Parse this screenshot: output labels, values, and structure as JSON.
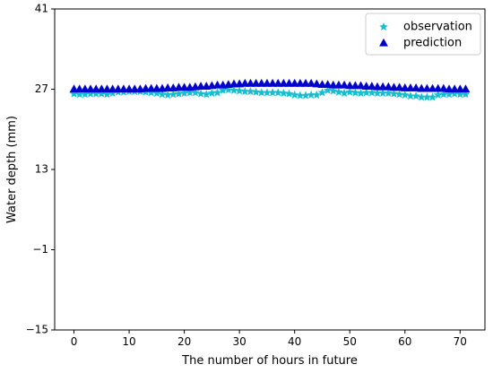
{
  "chart_data": {
    "type": "scatter",
    "title": "",
    "xlabel": "The number of hours in future",
    "ylabel": "Water depth (mm)",
    "xlim": [
      -3.5,
      74.5
    ],
    "ylim": [
      -15,
      41
    ],
    "xticks": [
      0,
      10,
      20,
      30,
      40,
      50,
      60,
      70
    ],
    "yticks": [
      -15,
      -1,
      13,
      27,
      41
    ],
    "ytick_labels": [
      "−15",
      "−1",
      "13",
      "27",
      "41"
    ],
    "grid": false,
    "legend_position": "top-right",
    "x": [
      0,
      1,
      2,
      3,
      4,
      5,
      6,
      7,
      8,
      9,
      10,
      11,
      12,
      13,
      14,
      15,
      16,
      17,
      18,
      19,
      20,
      21,
      22,
      23,
      24,
      25,
      26,
      27,
      28,
      29,
      30,
      31,
      32,
      33,
      34,
      35,
      36,
      37,
      38,
      39,
      40,
      41,
      42,
      43,
      44,
      45,
      46,
      47,
      48,
      49,
      50,
      51,
      52,
      53,
      54,
      55,
      56,
      57,
      58,
      59,
      60,
      61,
      62,
      63,
      64,
      65,
      66,
      67,
      68,
      69,
      70,
      71
    ],
    "series": [
      {
        "name": "observation",
        "marker": "star",
        "color": "#17becf",
        "values": [
          26.2,
          26.1,
          26.1,
          26.2,
          26.2,
          26.2,
          26.1,
          26.3,
          26.5,
          26.5,
          26.6,
          26.6,
          26.6,
          26.5,
          26.4,
          26.3,
          26.1,
          26.0,
          26.1,
          26.2,
          26.3,
          26.4,
          26.4,
          26.2,
          26.1,
          26.3,
          26.4,
          26.8,
          26.9,
          26.8,
          26.7,
          26.6,
          26.6,
          26.5,
          26.4,
          26.4,
          26.4,
          26.4,
          26.3,
          26.2,
          26.0,
          25.9,
          25.9,
          26.0,
          26.0,
          26.4,
          26.8,
          26.7,
          26.5,
          26.3,
          26.5,
          26.4,
          26.3,
          26.4,
          26.4,
          26.3,
          26.3,
          26.3,
          26.2,
          26.1,
          26.0,
          25.8,
          25.8,
          25.6,
          25.6,
          25.6,
          26.0,
          26.1,
          26.1,
          26.2,
          26.1,
          26.1
        ]
      },
      {
        "name": "prediction",
        "marker": "triangle",
        "color": "#0000cd",
        "values": [
          27.0,
          27.0,
          27.0,
          27.0,
          27.0,
          27.0,
          27.0,
          27.0,
          27.0,
          27.0,
          27.0,
          27.0,
          27.0,
          27.1,
          27.1,
          27.1,
          27.1,
          27.2,
          27.2,
          27.3,
          27.3,
          27.3,
          27.4,
          27.5,
          27.5,
          27.6,
          27.7,
          27.7,
          27.8,
          27.9,
          27.9,
          28.0,
          28.0,
          28.0,
          28.0,
          28.0,
          28.0,
          28.0,
          28.0,
          28.0,
          28.0,
          28.0,
          28.0,
          28.0,
          27.9,
          27.8,
          27.8,
          27.7,
          27.7,
          27.7,
          27.6,
          27.6,
          27.6,
          27.5,
          27.5,
          27.4,
          27.4,
          27.4,
          27.3,
          27.3,
          27.2,
          27.2,
          27.2,
          27.1,
          27.1,
          27.1,
          27.1,
          27.1,
          27.0,
          27.0,
          27.0,
          27.0
        ]
      }
    ]
  }
}
